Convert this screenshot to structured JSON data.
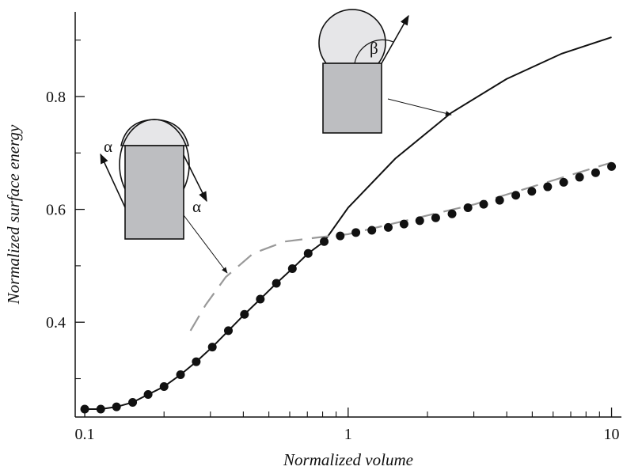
{
  "chart_data": {
    "type": "line",
    "xscale": "log",
    "xlabel": "Normalized volume",
    "ylabel": "Normalized surface energy",
    "xlim": [
      0.092,
      10.9
    ],
    "ylim": [
      0.232,
      0.95
    ],
    "xticks": [
      0.1,
      1,
      10
    ],
    "xminorticks": [
      0.2,
      0.3,
      0.4,
      0.5,
      0.6,
      0.7,
      0.8,
      0.9,
      2,
      3,
      4,
      5,
      6,
      7,
      8,
      9
    ],
    "yticks": [
      0.4,
      0.6,
      0.8
    ],
    "yminorticks": [
      0.3,
      0.5,
      0.7,
      0.9
    ],
    "annotations": [
      "α",
      "α",
      "β"
    ],
    "series": [
      {
        "style": "solid",
        "color": "#111111",
        "x": [
          0.1,
          0.115,
          0.132,
          0.152,
          0.174,
          0.2,
          0.231,
          0.265,
          0.305,
          0.351,
          0.404,
          0.464,
          0.534,
          0.614,
          0.705,
          0.811,
          1,
          1.51,
          2.46,
          3.99,
          6.47,
          10
        ],
        "values": [
          0.246,
          0.246,
          0.25,
          0.258,
          0.272,
          0.286,
          0.307,
          0.33,
          0.356,
          0.385,
          0.414,
          0.441,
          0.469,
          0.495,
          0.522,
          0.543,
          0.603,
          0.69,
          0.771,
          0.831,
          0.876,
          0.905
        ]
      },
      {
        "style": "dashed",
        "color": "#999999",
        "x": [
          0.252,
          0.288,
          0.343,
          0.436,
          0.575,
          0.758,
          1,
          3.02,
          10
        ],
        "values": [
          0.385,
          0.431,
          0.48,
          0.522,
          0.543,
          0.55,
          0.556,
          0.609,
          0.683
        ]
      },
      {
        "style": "dots",
        "color": "#111111",
        "x": [
          0.1,
          0.115,
          0.132,
          0.152,
          0.174,
          0.2,
          0.231,
          0.265,
          0.305,
          0.351,
          0.404,
          0.464,
          0.534,
          0.614,
          0.705,
          0.811,
          0.933,
          1.07,
          1.23,
          1.42,
          1.63,
          1.87,
          2.15,
          2.48,
          2.85,
          3.27,
          3.76,
          4.33,
          4.98,
          5.72,
          6.58,
          7.56,
          8.7,
          10
        ],
        "values": [
          0.246,
          0.246,
          0.25,
          0.258,
          0.272,
          0.286,
          0.307,
          0.33,
          0.356,
          0.385,
          0.414,
          0.441,
          0.469,
          0.495,
          0.522,
          0.543,
          0.553,
          0.559,
          0.563,
          0.568,
          0.574,
          0.58,
          0.585,
          0.592,
          0.603,
          0.609,
          0.616,
          0.625,
          0.632,
          0.64,
          0.648,
          0.657,
          0.665,
          0.676
        ]
      }
    ]
  }
}
